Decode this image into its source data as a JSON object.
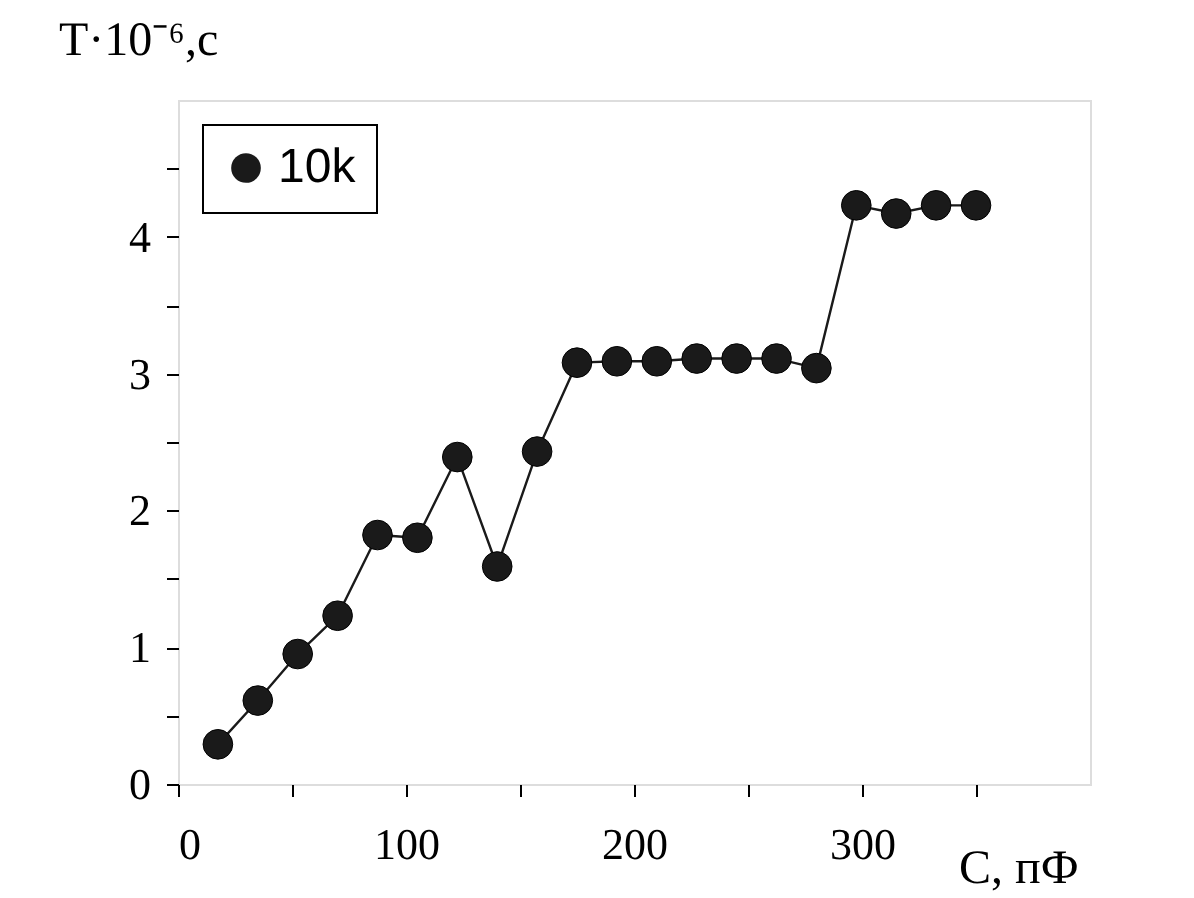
{
  "chart_data": {
    "type": "line",
    "xlabel": "C, пФ",
    "ylabel": "T·10⁻⁶,с",
    "x": [
      17.5,
      35,
      52.5,
      70,
      87.5,
      105,
      122.5,
      140,
      157.5,
      175,
      192.5,
      210,
      227.5,
      245,
      262.5,
      280,
      297.5,
      315,
      332.5,
      350
    ],
    "series": [
      {
        "name": "10k",
        "color": "#1a1a1a",
        "values": [
          0.29,
          0.61,
          0.95,
          1.23,
          1.82,
          1.8,
          2.39,
          1.59,
          2.43,
          3.08,
          3.09,
          3.09,
          3.11,
          3.11,
          3.11,
          3.04,
          4.23,
          4.17,
          4.23,
          4.23
        ]
      }
    ],
    "xlim": [
      0,
      400
    ],
    "ylim": [
      0,
      5
    ],
    "xticks": [
      0,
      {
        "value": 50,
        "label": null
      },
      100,
      {
        "value": 150,
        "label": null
      },
      200,
      {
        "value": 250,
        "label": null
      },
      300,
      {
        "value": 350,
        "label": null
      }
    ],
    "yticks": [
      0,
      {
        "value": 0.5,
        "label": null
      },
      1,
      {
        "value": 1.5,
        "label": null
      },
      2,
      {
        "value": 2.5,
        "label": null
      },
      3,
      {
        "value": 3.5,
        "label": null
      },
      4,
      {
        "value": 4.5,
        "label": null
      }
    ],
    "marker": "circle",
    "line_style": "solid",
    "legend": "top left",
    "grid": false
  }
}
